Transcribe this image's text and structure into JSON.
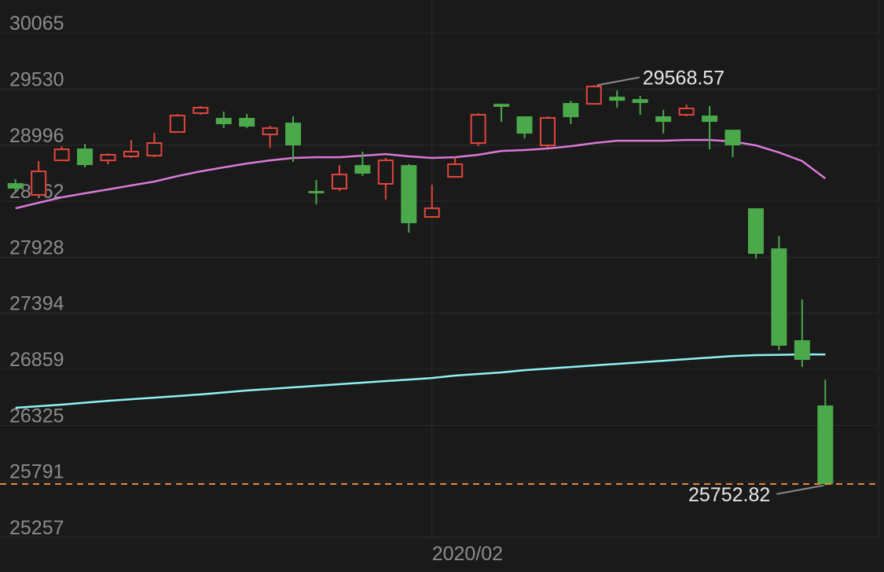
{
  "chart_data": {
    "type": "candlestick",
    "categories": [
      null,
      null,
      null,
      null,
      null,
      null,
      null,
      null,
      null,
      null,
      null,
      null,
      null,
      null,
      null,
      null,
      null,
      null,
      "2020/02",
      null,
      null,
      null,
      null,
      null,
      null,
      null,
      null,
      null,
      null,
      null,
      null,
      null,
      null,
      null,
      null,
      null
    ],
    "open": [
      28635,
      28523,
      28852,
      28965,
      28852,
      28890,
      28897,
      29122,
      29302,
      29257,
      29257,
      29099,
      29212,
      28560,
      28583,
      28807,
      28628,
      28807,
      28313,
      28695,
      29017,
      29391,
      29272,
      28995,
      29399,
      29391,
      29459,
      29436,
      29272,
      29287,
      29279,
      29144,
      28395,
      28013,
      27137,
      26515
    ],
    "high": [
      28672,
      28845,
      28987,
      29009,
      28920,
      29047,
      29114,
      29294,
      29369,
      29317,
      29294,
      29182,
      29272,
      28665,
      28807,
      28935,
      28875,
      28817,
      28620,
      28882,
      29302,
      29391,
      29272,
      29272,
      29421,
      29568.57,
      29519,
      29466,
      29332,
      29384,
      29369,
      29144,
      28395,
      28133,
      27526,
      26762
    ],
    "low": [
      28553,
      28508,
      28852,
      28785,
      28815,
      28875,
      28882,
      29122,
      29287,
      29159,
      29159,
      28972,
      28837,
      28433,
      28560,
      28702,
      28478,
      28163,
      28313,
      28687,
      28987,
      29219,
      29062,
      28972,
      29197,
      29391,
      29354,
      29287,
      29107,
      29272,
      28957,
      28882,
      27916,
      27040,
      26882,
      25752.82
    ],
    "close": [
      28583,
      28747,
      28957,
      28807,
      28905,
      28935,
      29017,
      29279,
      29354,
      29197,
      29174,
      29159,
      28995,
      28538,
      28717,
      28725,
      28852,
      28253,
      28395,
      28815,
      29287,
      29362,
      29107,
      29257,
      29264,
      29556,
      29421,
      29399,
      29219,
      29347,
      29219,
      28995,
      27961,
      27085,
      26950,
      25766
    ],
    "up_color": "#e2463c",
    "down_color": "#4ba84b",
    "lines": [
      {
        "color": "#d97ad6",
        "values": [
          28395,
          28448,
          28500,
          28538,
          28575,
          28613,
          28650,
          28702,
          28747,
          28785,
          28822,
          28852,
          28875,
          28882,
          28882,
          28897,
          28912,
          28890,
          28875,
          28882,
          28905,
          28942,
          28950,
          28965,
          28987,
          29017,
          29039,
          29039,
          29039,
          29047,
          29047,
          29032,
          28995,
          28927,
          28845,
          28680
        ]
      },
      {
        "color": "#8ef3f3",
        "values": [
          26493,
          26508,
          26523,
          26542,
          26560,
          26575,
          26590,
          26605,
          26620,
          26639,
          26658,
          26673,
          26688,
          26703,
          26718,
          26733,
          26748,
          26762,
          26777,
          26800,
          26815,
          26830,
          26852,
          26867,
          26882,
          26897,
          26912,
          26927,
          26942,
          26957,
          26972,
          26987,
          26995,
          26998,
          27002,
          27002
        ]
      }
    ],
    "last_price_color": "#e08a3c",
    "ylim": [
      25212,
      30381
    ],
    "yticks": [
      30065,
      29530,
      28996,
      28462,
      27928,
      27394,
      26859,
      26325,
      25791,
      25257
    ],
    "grid": true
  }
}
